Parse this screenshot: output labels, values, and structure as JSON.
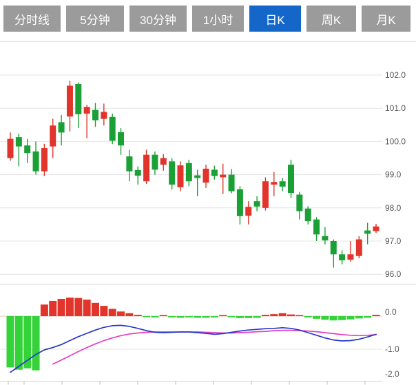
{
  "tabbar": {
    "active_index": 4,
    "tabs": [
      {
        "label": "分时线",
        "name": "tab-time-share"
      },
      {
        "label": "5分钟",
        "name": "tab-5min"
      },
      {
        "label": "30分钟",
        "name": "tab-30min"
      },
      {
        "label": "1小时",
        "name": "tab-1hour"
      },
      {
        "label": "日K",
        "name": "tab-day-k"
      },
      {
        "label": "周K",
        "name": "tab-week-k"
      },
      {
        "label": "月K",
        "name": "tab-month-k"
      }
    ]
  },
  "colors": {
    "tab_inactive_bg": "#9b9b9b",
    "tab_active_bg": "#1467c8",
    "tab_text": "#ffffff",
    "candle_up": "#e1342a",
    "candle_down": "#1ba035",
    "macd_bar_up": "#e1342a",
    "macd_bar_down": "#35d33a",
    "dif_line": "#2737c8",
    "dea_line": "#e23fc8",
    "grid_line": "#e4e4e4",
    "pane_border": "#d6d6d6",
    "zero_line": "#f3bcb4",
    "axis_text": "#585858"
  },
  "chart_data": {
    "type": "candlestick_with_macd",
    "grid": "horizontal gridlines on",
    "legend_position": "none",
    "price_axis": {
      "side": "right",
      "tick_labels": [
        "102.0",
        "101.0",
        "100.0",
        "99.0",
        "98.0",
        "97.0",
        "96.0"
      ],
      "tick_values": [
        102,
        101,
        100,
        99,
        98,
        97,
        96
      ],
      "range": [
        95.9,
        103.0
      ]
    },
    "macd_axis": {
      "side": "right",
      "tick_labels": [
        "0.0",
        "-1.0",
        "-2.0"
      ],
      "tick_values": [
        0,
        -1,
        -2
      ],
      "range": [
        0.75,
        -2.05
      ]
    },
    "candles": [
      {
        "o": 99.5,
        "c": 100.08,
        "h": 100.27,
        "l": 99.42
      },
      {
        "o": 100.13,
        "c": 99.85,
        "h": 100.24,
        "l": 99.25
      },
      {
        "o": 99.88,
        "c": 99.65,
        "h": 100.08,
        "l": 99.35
      },
      {
        "o": 99.7,
        "c": 99.1,
        "h": 100.0,
        "l": 99.0
      },
      {
        "o": 99.1,
        "c": 99.8,
        "h": 99.93,
        "l": 98.96
      },
      {
        "o": 99.85,
        "c": 100.48,
        "h": 100.68,
        "l": 99.5
      },
      {
        "o": 100.58,
        "c": 100.27,
        "h": 100.8,
        "l": 99.88
      },
      {
        "o": 100.75,
        "c": 101.68,
        "h": 101.83,
        "l": 100.3
      },
      {
        "o": 101.73,
        "c": 100.82,
        "h": 101.78,
        "l": 100.4
      },
      {
        "o": 100.84,
        "c": 101.04,
        "h": 101.1,
        "l": 100.1
      },
      {
        "o": 100.95,
        "c": 100.64,
        "h": 101.16,
        "l": 100.44
      },
      {
        "o": 100.68,
        "c": 100.89,
        "h": 101.14,
        "l": 100.48
      },
      {
        "o": 100.74,
        "c": 100.02,
        "h": 100.84,
        "l": 99.92
      },
      {
        "o": 100.28,
        "c": 99.88,
        "h": 100.4,
        "l": 99.6
      },
      {
        "o": 99.55,
        "c": 99.1,
        "h": 99.75,
        "l": 98.8
      },
      {
        "o": 99.14,
        "c": 98.97,
        "h": 99.25,
        "l": 98.7
      },
      {
        "o": 98.8,
        "c": 99.6,
        "h": 99.75,
        "l": 98.72
      },
      {
        "o": 99.6,
        "c": 99.15,
        "h": 99.7,
        "l": 99.0
      },
      {
        "o": 99.3,
        "c": 99.5,
        "h": 99.62,
        "l": 99.12
      },
      {
        "o": 99.4,
        "c": 98.7,
        "h": 99.5,
        "l": 98.55
      },
      {
        "o": 98.62,
        "c": 99.28,
        "h": 99.4,
        "l": 98.5
      },
      {
        "o": 99.35,
        "c": 98.8,
        "h": 99.45,
        "l": 98.65
      },
      {
        "o": 98.98,
        "c": 98.9,
        "h": 99.15,
        "l": 98.35
      },
      {
        "o": 98.76,
        "c": 99.18,
        "h": 99.3,
        "l": 98.6
      },
      {
        "o": 99.15,
        "c": 98.96,
        "h": 99.27,
        "l": 98.85
      },
      {
        "o": 98.92,
        "c": 99.0,
        "h": 99.33,
        "l": 98.42
      },
      {
        "o": 99.0,
        "c": 98.5,
        "h": 99.17,
        "l": 98.44
      },
      {
        "o": 98.56,
        "c": 97.75,
        "h": 98.65,
        "l": 97.5
      },
      {
        "o": 97.76,
        "c": 98.03,
        "h": 98.2,
        "l": 97.5
      },
      {
        "o": 98.2,
        "c": 98.04,
        "h": 98.35,
        "l": 97.9
      },
      {
        "o": 98.0,
        "c": 98.8,
        "h": 98.92,
        "l": 97.92
      },
      {
        "o": 98.7,
        "c": 98.78,
        "h": 99.08,
        "l": 98.35
      },
      {
        "o": 98.8,
        "c": 98.64,
        "h": 98.9,
        "l": 98.5
      },
      {
        "o": 99.3,
        "c": 98.45,
        "h": 99.45,
        "l": 98.3
      },
      {
        "o": 98.4,
        "c": 97.9,
        "h": 98.48,
        "l": 97.65
      },
      {
        "o": 97.98,
        "c": 97.6,
        "h": 98.05,
        "l": 97.5
      },
      {
        "o": 97.65,
        "c": 97.2,
        "h": 97.72,
        "l": 97.0
      },
      {
        "o": 97.15,
        "c": 97.02,
        "h": 97.42,
        "l": 96.9
      },
      {
        "o": 97.0,
        "c": 96.6,
        "h": 97.05,
        "l": 96.2
      },
      {
        "o": 96.6,
        "c": 96.42,
        "h": 96.72,
        "l": 96.3
      },
      {
        "o": 96.44,
        "c": 96.6,
        "h": 97.0,
        "l": 96.38
      },
      {
        "o": 96.55,
        "c": 97.05,
        "h": 97.15,
        "l": 96.48
      },
      {
        "o": 97.32,
        "c": 97.22,
        "h": 97.55,
        "l": 96.9
      },
      {
        "o": 97.3,
        "c": 97.44,
        "h": 97.52,
        "l": 97.24
      }
    ],
    "macd": {
      "histogram": [
        -1.55,
        -1.62,
        -1.58,
        -1.64,
        0.35,
        0.46,
        0.52,
        0.56,
        0.55,
        0.5,
        0.4,
        0.31,
        0.22,
        0.14,
        0.09,
        0.04,
        -0.03,
        -0.04,
        0.02,
        -0.04,
        -0.05,
        -0.04,
        -0.05,
        -0.05,
        -0.04,
        0.03,
        -0.02,
        -0.06,
        -0.06,
        -0.05,
        0.04,
        0.06,
        0.09,
        0.05,
        0.02,
        -0.04,
        -0.08,
        -0.11,
        -0.13,
        -0.12,
        -0.1,
        -0.07,
        -0.05,
        0.04
      ],
      "dif": [
        -1.7,
        -1.52,
        -1.34,
        -1.16,
        -1.02,
        -0.95,
        -0.86,
        -0.74,
        -0.62,
        -0.52,
        -0.42,
        -0.34,
        -0.29,
        -0.28,
        -0.31,
        -0.37,
        -0.44,
        -0.49,
        -0.5,
        -0.49,
        -0.48,
        -0.48,
        -0.5,
        -0.52,
        -0.55,
        -0.53,
        -0.49,
        -0.45,
        -0.42,
        -0.4,
        -0.38,
        -0.37,
        -0.35,
        -0.37,
        -0.42,
        -0.5,
        -0.58,
        -0.66,
        -0.72,
        -0.75,
        -0.74,
        -0.7,
        -0.63,
        -0.55
      ],
      "dea": [
        null,
        null,
        null,
        null,
        null,
        -1.45,
        -1.33,
        -1.2,
        -1.07,
        -0.95,
        -0.84,
        -0.74,
        -0.66,
        -0.59,
        -0.54,
        -0.51,
        -0.49,
        -0.48,
        -0.48,
        -0.48,
        -0.48,
        -0.48,
        -0.48,
        -0.49,
        -0.5,
        -0.51,
        -0.51,
        -0.5,
        -0.49,
        -0.47,
        -0.46,
        -0.44,
        -0.43,
        -0.43,
        -0.44,
        -0.45,
        -0.47,
        -0.5,
        -0.53,
        -0.56,
        -0.58,
        -0.59,
        -0.58,
        -0.56
      ]
    }
  }
}
